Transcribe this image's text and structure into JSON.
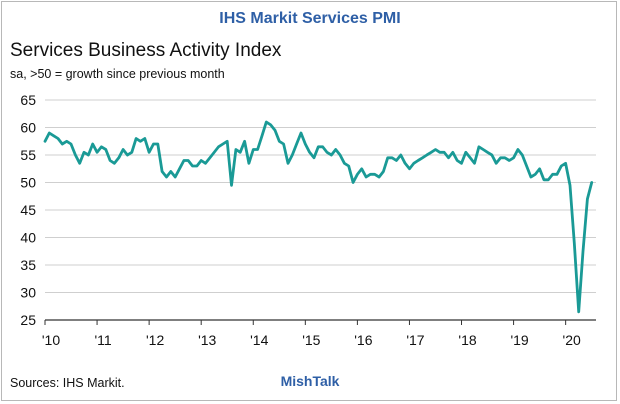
{
  "header": {
    "title": "IHS Markit Services PMI"
  },
  "footer": {
    "source": "Sources: IHS Markit.",
    "watermark": "MishTalk"
  },
  "colors": {
    "line": "#1a9a96",
    "header_text": "#2e5fa6",
    "grid": "#cfcfcf",
    "axis": "#333333"
  },
  "chart_data": {
    "type": "line",
    "title": "Services Business Activity Index",
    "subtitle": "sa, >50 = growth since previous month",
    "xlabel": "",
    "ylabel": "",
    "xlim": [
      2010.0,
      2020.583
    ],
    "ylim": [
      25,
      65
    ],
    "yticks": [
      25,
      30,
      35,
      40,
      45,
      50,
      55,
      60,
      65
    ],
    "xticks": [
      {
        "value": 2010,
        "label": "'10"
      },
      {
        "value": 2011,
        "label": "'11"
      },
      {
        "value": 2012,
        "label": "'12"
      },
      {
        "value": 2013,
        "label": "'13"
      },
      {
        "value": 2014,
        "label": "'14"
      },
      {
        "value": 2015,
        "label": "'15"
      },
      {
        "value": 2016,
        "label": "'16"
      },
      {
        "value": 2017,
        "label": "'17"
      },
      {
        "value": 2018,
        "label": "'18"
      },
      {
        "value": 2019,
        "label": "'19"
      },
      {
        "value": 2020,
        "label": "'20"
      }
    ],
    "grid": "horizontal",
    "series": [
      {
        "name": "",
        "x": [
          2010.0,
          2010.083,
          2010.167,
          2010.25,
          2010.333,
          2010.417,
          2010.5,
          2010.583,
          2010.667,
          2010.75,
          2010.833,
          2010.917,
          2011.0,
          2011.083,
          2011.167,
          2011.25,
          2011.333,
          2011.417,
          2011.5,
          2011.583,
          2011.667,
          2011.75,
          2011.833,
          2011.917,
          2012.0,
          2012.083,
          2012.167,
          2012.25,
          2012.333,
          2012.417,
          2012.5,
          2012.583,
          2012.667,
          2012.75,
          2012.833,
          2012.917,
          2013.0,
          2013.083,
          2013.167,
          2013.25,
          2013.333,
          2013.417,
          2013.5,
          2013.583,
          2013.667,
          2013.75,
          2013.833,
          2013.917,
          2014.0,
          2014.083,
          2014.167,
          2014.25,
          2014.333,
          2014.417,
          2014.5,
          2014.583,
          2014.667,
          2014.75,
          2014.833,
          2014.917,
          2015.0,
          2015.083,
          2015.167,
          2015.25,
          2015.333,
          2015.417,
          2015.5,
          2015.583,
          2015.667,
          2015.75,
          2015.833,
          2015.917,
          2016.0,
          2016.083,
          2016.167,
          2016.25,
          2016.333,
          2016.417,
          2016.5,
          2016.583,
          2016.667,
          2016.75,
          2016.833,
          2016.917,
          2017.0,
          2017.083,
          2017.167,
          2017.25,
          2017.333,
          2017.417,
          2017.5,
          2017.583,
          2017.667,
          2017.75,
          2017.833,
          2017.917,
          2018.0,
          2018.083,
          2018.167,
          2018.25,
          2018.333,
          2018.417,
          2018.5,
          2018.583,
          2018.667,
          2018.75,
          2018.833,
          2018.917,
          2019.0,
          2019.083,
          2019.167,
          2019.25,
          2019.333,
          2019.417,
          2019.5,
          2019.583,
          2019.667,
          2019.75,
          2019.833,
          2019.917,
          2020.0,
          2020.083,
          2020.167,
          2020.25,
          2020.333,
          2020.417,
          2020.5
        ],
        "values": [
          57.5,
          59.0,
          58.5,
          58.0,
          57.0,
          57.5,
          57.0,
          55.0,
          53.5,
          55.5,
          55.0,
          57.0,
          55.5,
          56.5,
          56.0,
          54.0,
          53.5,
          54.5,
          56.0,
          55.0,
          55.5,
          58.0,
          57.5,
          58.0,
          55.5,
          57.0,
          57.0,
          52.0,
          51.0,
          52.0,
          51.0,
          52.5,
          54.0,
          54.0,
          53.0,
          53.0,
          54.0,
          53.5,
          54.5,
          55.5,
          56.5,
          57.0,
          57.5,
          49.5,
          56.0,
          55.5,
          57.5,
          53.5,
          56.0,
          56.0,
          58.5,
          61.0,
          60.5,
          59.5,
          57.5,
          57.0,
          53.5,
          55.0,
          57.0,
          59.0,
          57.0,
          55.5,
          54.5,
          56.5,
          56.5,
          55.5,
          55.0,
          56.0,
          55.0,
          53.5,
          53.0,
          50.0,
          51.5,
          52.5,
          51.0,
          51.5,
          51.5,
          51.0,
          52.0,
          54.5,
          54.5,
          54.0,
          55.0,
          53.5,
          52.5,
          53.5,
          54.0,
          54.5,
          55.0,
          55.5,
          56.0,
          55.5,
          55.5,
          54.5,
          55.5,
          54.0,
          53.5,
          55.5,
          54.5,
          53.5,
          56.5,
          56.0,
          55.5,
          55.0,
          53.5,
          54.5,
          54.5,
          54.0,
          54.5,
          56.0,
          55.0,
          53.0,
          51.0,
          51.5,
          52.5,
          50.5,
          50.5,
          51.5,
          51.5,
          53.0,
          53.5,
          49.5,
          39.0,
          26.5,
          37.5,
          47.0,
          50.0
        ]
      }
    ]
  }
}
